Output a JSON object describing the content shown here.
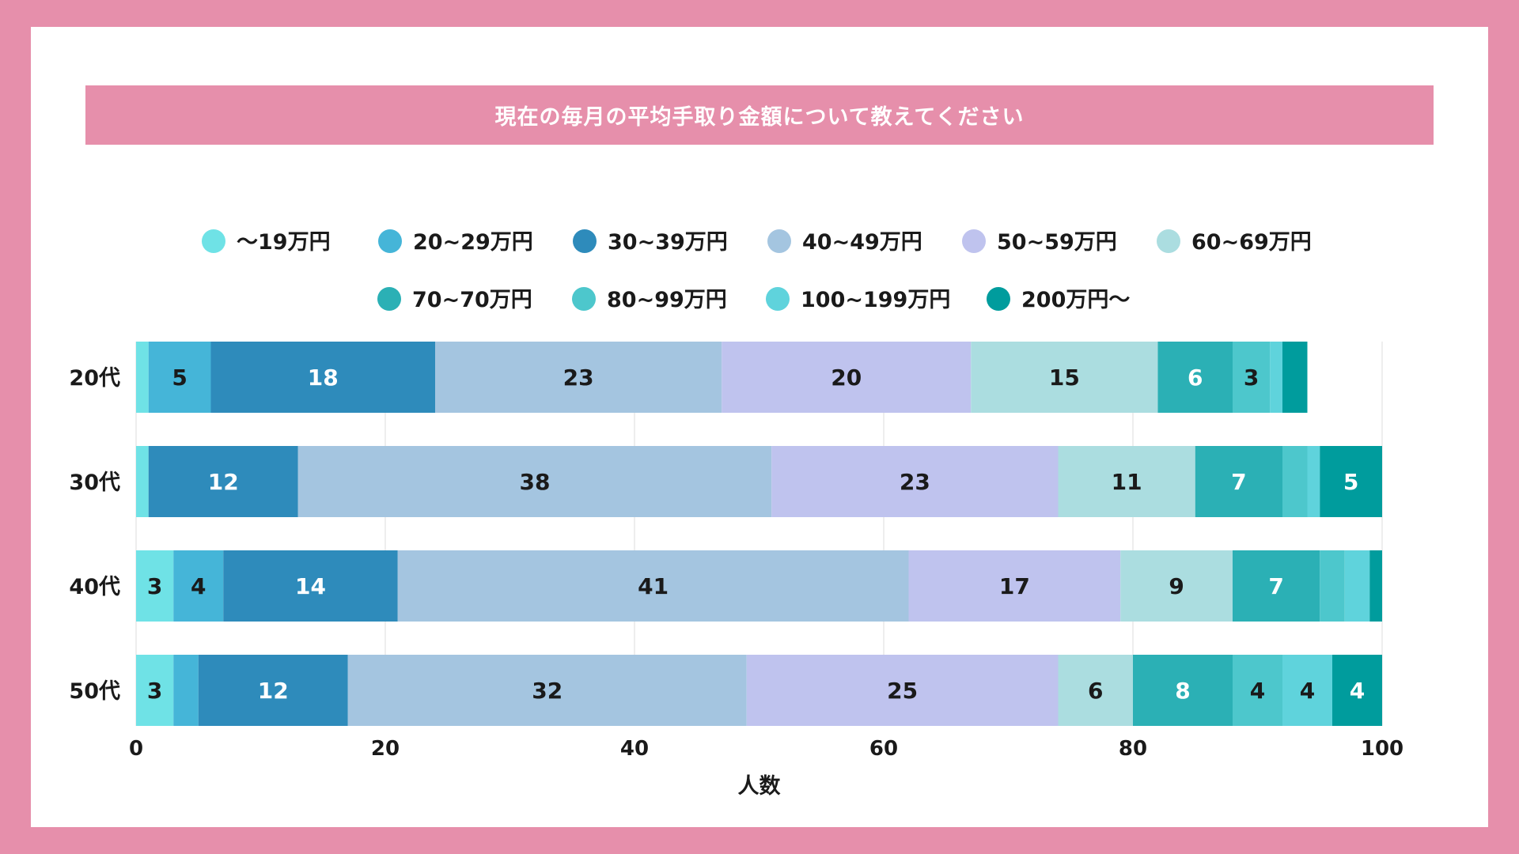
{
  "title": "現在の毎月の平均手取り金額について教えてください",
  "colors": {
    "page_bg": "#e68fab",
    "card_bg": "#ffffff",
    "title_bg": "#e68fab",
    "grid": "#dddddd",
    "text_dark": "#1a1a1a",
    "text_light": "#ffffff"
  },
  "chart_data": {
    "type": "bar",
    "orientation": "horizontal",
    "stacked": true,
    "categories": [
      "20代",
      "30代",
      "40代",
      "50代"
    ],
    "series": [
      {
        "name": "〜19万円",
        "color": "#6fe2e6",
        "label_color": "dark",
        "values": [
          1,
          1,
          3,
          3
        ]
      },
      {
        "name": "20~29万円",
        "color": "#45b5d8",
        "label_color": "dark",
        "values": [
          5,
          0,
          4,
          2
        ]
      },
      {
        "name": "30~39万円",
        "color": "#2e8bbb",
        "label_color": "light",
        "values": [
          18,
          12,
          14,
          12
        ]
      },
      {
        "name": "40~49万円",
        "color": "#a4c5e0",
        "label_color": "dark",
        "values": [
          23,
          38,
          41,
          32
        ]
      },
      {
        "name": "50~59万円",
        "color": "#bfc3ee",
        "label_color": "dark",
        "values": [
          20,
          23,
          17,
          25
        ]
      },
      {
        "name": "60~69万円",
        "color": "#abdde0",
        "label_color": "dark",
        "values": [
          15,
          11,
          9,
          6
        ]
      },
      {
        "name": "70~70万円",
        "color": "#2bb0b5",
        "label_color": "light",
        "values": [
          6,
          7,
          7,
          8
        ]
      },
      {
        "name": "80~99万円",
        "color": "#4dc7cc",
        "label_color": "dark",
        "values": [
          3,
          2,
          2,
          4
        ]
      },
      {
        "name": "100~199万円",
        "color": "#5fd3dc",
        "label_color": "dark",
        "values": [
          1,
          1,
          2,
          4
        ]
      },
      {
        "name": "200万円〜",
        "color": "#009c9d",
        "label_color": "light",
        "values": [
          2,
          5,
          1,
          4
        ]
      }
    ],
    "label_min_value": 3,
    "xlabel": "人数",
    "xlim": [
      0,
      100
    ],
    "xticks": [
      0,
      20,
      40,
      60,
      80,
      100
    ],
    "grid": true,
    "legend_placement": "top"
  }
}
